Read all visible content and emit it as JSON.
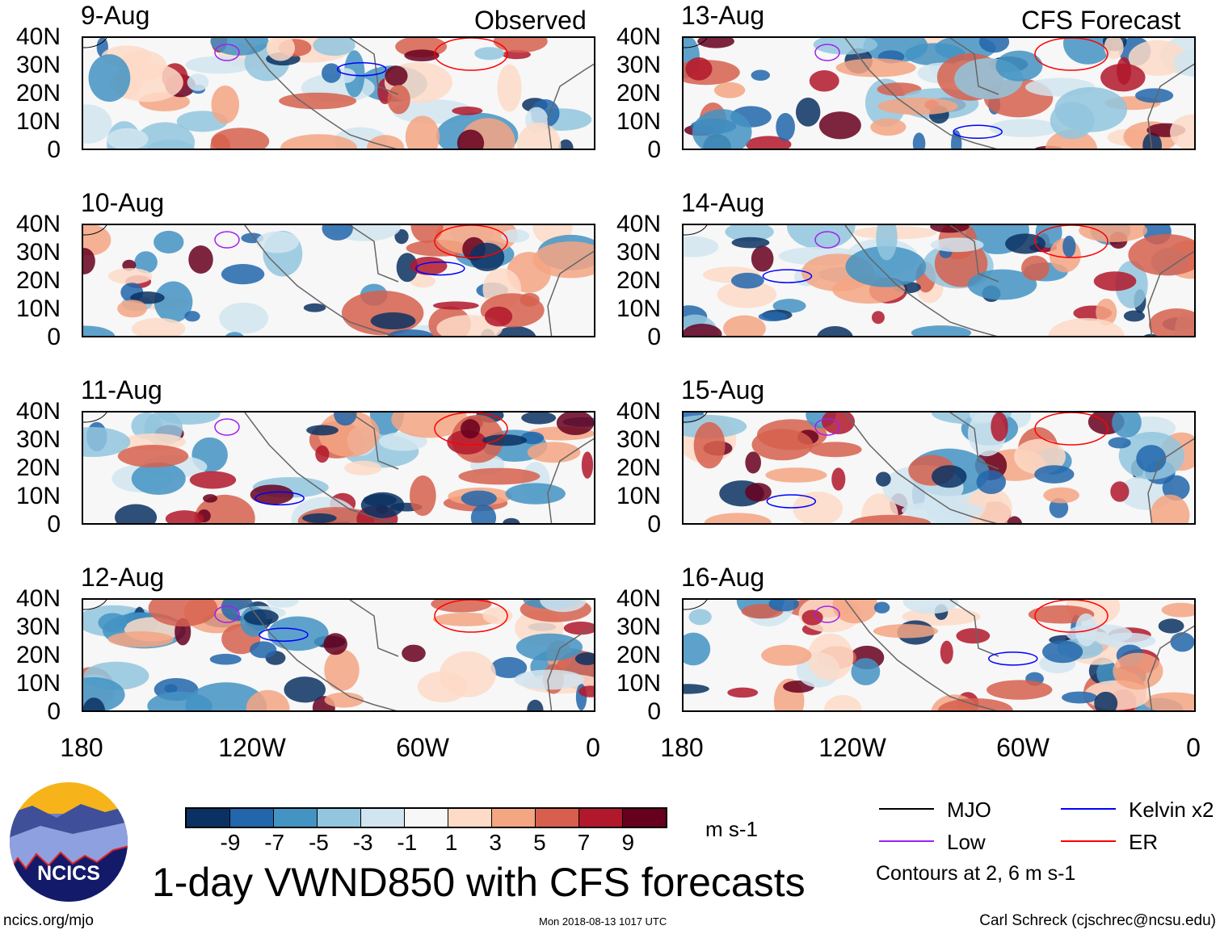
{
  "header": {
    "observed_label": "Observed",
    "forecast_label": "CFS Forecast"
  },
  "chart_data": {
    "type": "heatmap",
    "title": "1-day VWND850 with CFS forecasts",
    "units": "m s-1",
    "panels": [
      {
        "date": "9-Aug",
        "source": "Observed"
      },
      {
        "date": "10-Aug",
        "source": "Observed"
      },
      {
        "date": "11-Aug",
        "source": "Observed"
      },
      {
        "date": "12-Aug",
        "source": "Observed"
      },
      {
        "date": "13-Aug",
        "source": "CFS Forecast"
      },
      {
        "date": "14-Aug",
        "source": "CFS Forecast"
      },
      {
        "date": "15-Aug",
        "source": "CFS Forecast"
      },
      {
        "date": "16-Aug",
        "source": "CFS Forecast"
      }
    ],
    "y_ticks": [
      "40N",
      "30N",
      "20N",
      "10N",
      "0"
    ],
    "x_ticks": [
      "180",
      "120W",
      "60W",
      "0"
    ],
    "colorbar": {
      "ticks": [
        "-9",
        "-7",
        "-5",
        "-3",
        "-1",
        "1",
        "3",
        "5",
        "7",
        "9"
      ],
      "colors": [
        "#0a3162",
        "#2266ac",
        "#4393c3",
        "#92c5de",
        "#d1e5f0",
        "#f7f7f7",
        "#fddbc7",
        "#f4a582",
        "#d6604d",
        "#b2182b",
        "#67001f"
      ]
    },
    "legend": [
      {
        "label": "MJO",
        "color": "#000000"
      },
      {
        "label": "Kelvin x2",
        "color": "#0000ff"
      },
      {
        "label": "Low",
        "color": "#a020f0"
      },
      {
        "label": "ER",
        "color": "#ff0000"
      }
    ],
    "contour_note": "Contours at 2, 6 m s-1"
  },
  "footer": {
    "url": "ncics.org/mjo",
    "timestamp": "Mon 2018-08-13 1017 UTC",
    "author": "Carl Schreck (cjschrec@ncsu.edu)",
    "logo_text": "NCICS"
  }
}
